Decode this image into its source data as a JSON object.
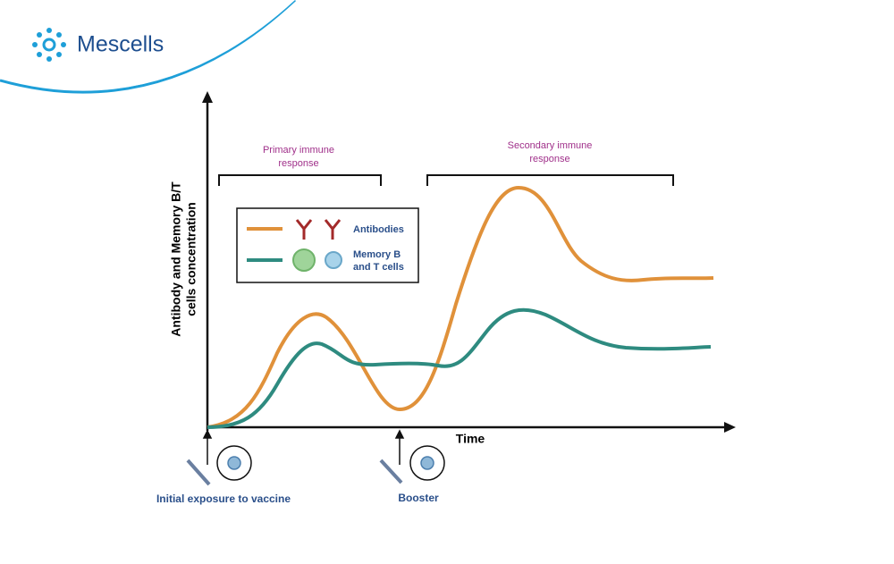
{
  "logo": {
    "text": "Mescells"
  },
  "y_axis": {
    "lines": [
      "Antibody and Memory B/T",
      "cells concentration"
    ]
  },
  "x_axis": {
    "label": "Time"
  },
  "phases": [
    {
      "lines": [
        "Primary immune",
        "response"
      ]
    },
    {
      "lines": [
        "Secondary immune",
        "response"
      ]
    }
  ],
  "legend": [
    {
      "lines": [
        "Antibodies"
      ]
    },
    {
      "lines": [
        "Memory B",
        "and T cells"
      ]
    }
  ],
  "events": [
    {
      "label": "Initial exposure to vaccine"
    },
    {
      "label": "Booster"
    }
  ]
}
